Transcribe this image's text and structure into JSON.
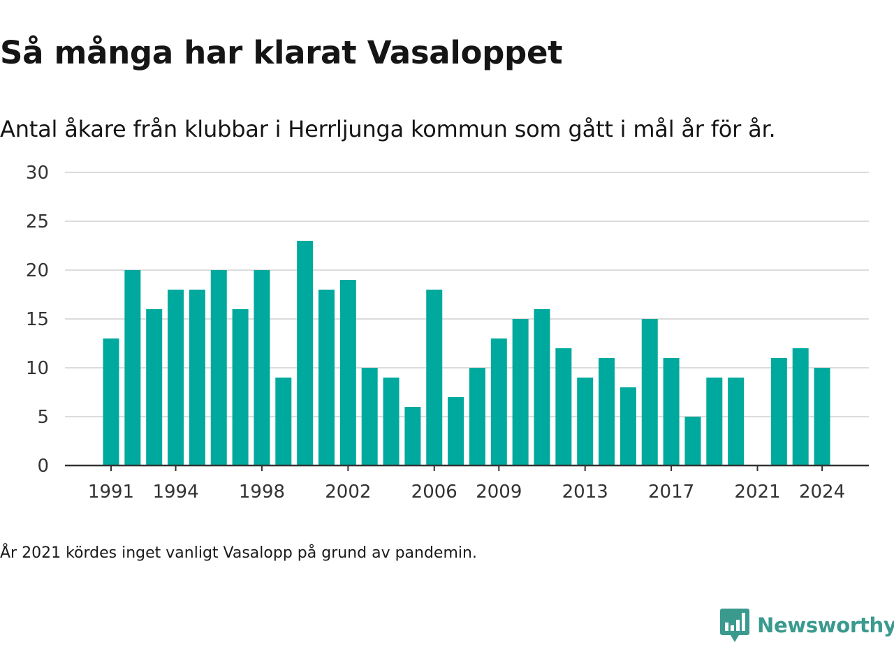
{
  "chart_data": {
    "type": "bar",
    "title": "Så många har klarat Vasaloppet",
    "subtitle": "Antal åkare från klubbar i Herrljunga kommun som gått i mål år för år.",
    "categories": [
      1991,
      1992,
      1993,
      1994,
      1995,
      1996,
      1997,
      1998,
      1999,
      2000,
      2001,
      2002,
      2003,
      2004,
      2005,
      2006,
      2007,
      2008,
      2009,
      2010,
      2011,
      2012,
      2013,
      2014,
      2015,
      2016,
      2017,
      2018,
      2019,
      2020,
      2021,
      2022,
      2023,
      2024
    ],
    "values": [
      13,
      20,
      16,
      18,
      18,
      20,
      16,
      20,
      9,
      23,
      18,
      19,
      10,
      9,
      6,
      18,
      7,
      10,
      13,
      15,
      16,
      12,
      9,
      11,
      8,
      15,
      11,
      5,
      9,
      9,
      0,
      11,
      12,
      10
    ],
    "xticks": [
      "1991",
      "1994",
      "1998",
      "2002",
      "2006",
      "2009",
      "2013",
      "2017",
      "2021",
      "2024"
    ],
    "yticks": [
      "0",
      "5",
      "10",
      "15",
      "20",
      "25",
      "30"
    ],
    "ylim": [
      0,
      30
    ],
    "grid": "horizontal",
    "bar_color": "#00a99d",
    "note": "År 2021 kördes inget vanligt Vasalopp på grund av pandemin."
  },
  "brand": {
    "name": "Newsworthy",
    "logo_icon": "newsworthy-chart-bubble-icon",
    "color": "#3a9a8e"
  }
}
